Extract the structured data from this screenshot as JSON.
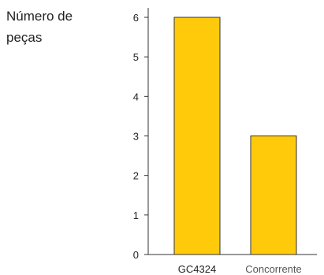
{
  "chart_data": {
    "type": "bar",
    "ylabel": [
      "Número de",
      "peças"
    ],
    "xlabel": "",
    "title": "",
    "categories": [
      "GC4324",
      "Concorrente"
    ],
    "values": [
      6,
      3
    ],
    "ylim": [
      0,
      6
    ],
    "yticks": [
      0,
      1,
      2,
      3,
      4,
      5,
      6
    ],
    "grid": false,
    "legend": "none",
    "bar_color": "#FFCA0A",
    "bar_stroke": "#333333",
    "axis_color": "#333333"
  }
}
